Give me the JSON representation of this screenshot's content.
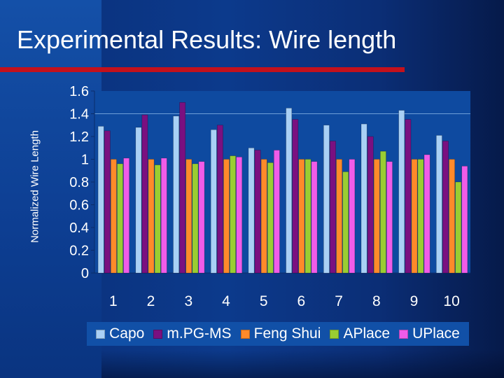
{
  "slide": {
    "title": "Experimental Results: Wire length"
  },
  "colors": {
    "accent_bar": "#c4111c",
    "plot_background": "#0e4aa0"
  },
  "chart_data": {
    "type": "bar",
    "ylabel": "Normalized Wire Length",
    "xlabel": "",
    "ylim": [
      0,
      1.6
    ],
    "yticks": [
      "0",
      "0.2",
      "0.4",
      "0.6",
      "0.8",
      "1",
      "1.2",
      "1.4",
      "1.6"
    ],
    "grid": "horizontal line at 1.4",
    "legend_position": "bottom",
    "categories": [
      "1",
      "2",
      "3",
      "4",
      "5",
      "6",
      "7",
      "8",
      "9",
      "10"
    ],
    "series": [
      {
        "name": "Capo",
        "color": "#a9d0f5",
        "values": [
          1.29,
          1.28,
          1.38,
          1.26,
          1.1,
          1.45,
          1.3,
          1.31,
          1.43,
          1.21
        ]
      },
      {
        "name": "m.PG-MS",
        "color": "#7a1080",
        "values": [
          1.25,
          1.39,
          1.5,
          1.3,
          1.08,
          1.35,
          1.16,
          1.2,
          1.35,
          1.16
        ]
      },
      {
        "name": "Feng Shui",
        "color": "#ff8a2a",
        "values": [
          1.0,
          1.0,
          1.0,
          1.0,
          1.0,
          1.0,
          1.0,
          1.0,
          1.0,
          1.0
        ]
      },
      {
        "name": "APlace",
        "color": "#9acd32",
        "values": [
          0.96,
          0.95,
          0.96,
          1.03,
          0.97,
          1.0,
          0.89,
          1.07,
          1.0,
          0.8
        ]
      },
      {
        "name": "UPlace",
        "color": "#f05ce8",
        "values": [
          1.01,
          1.01,
          0.98,
          1.02,
          1.08,
          0.98,
          1.0,
          0.98,
          1.04,
          0.94
        ]
      }
    ]
  }
}
